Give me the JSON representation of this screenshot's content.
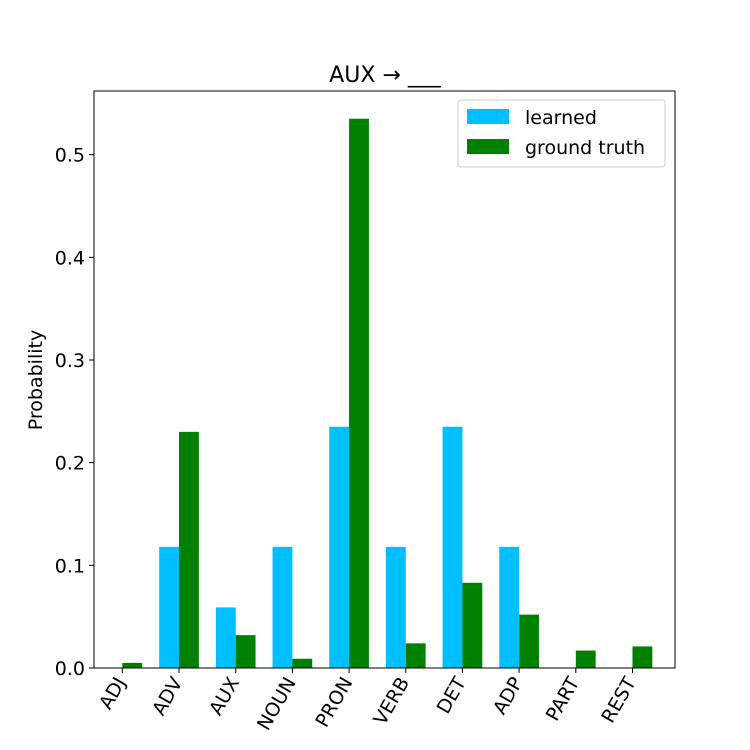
{
  "chart_data": {
    "type": "bar",
    "title": "AUX → ___",
    "xlabel": "",
    "ylabel": "Probability",
    "categories": [
      "ADJ",
      "ADV",
      "AUX",
      "NOUN",
      "PRON",
      "VERB",
      "DET",
      "ADP",
      "PART",
      "REST"
    ],
    "series": [
      {
        "name": "learned",
        "color": "#00bfff",
        "values": [
          0.0,
          0.118,
          0.059,
          0.118,
          0.235,
          0.118,
          0.235,
          0.118,
          0.0,
          0.0
        ]
      },
      {
        "name": "ground truth",
        "color": "#008000",
        "values": [
          0.005,
          0.23,
          0.032,
          0.009,
          0.535,
          0.024,
          0.083,
          0.052,
          0.017,
          0.021
        ]
      }
    ],
    "ylim": [
      0,
      0.562
    ],
    "yticks": [
      0.0,
      0.1,
      0.2,
      0.3,
      0.4,
      0.5
    ],
    "ytick_labels": [
      "0.0",
      "0.1",
      "0.2",
      "0.3",
      "0.4",
      "0.5"
    ],
    "legend_position": "top-right",
    "grid": false
  }
}
